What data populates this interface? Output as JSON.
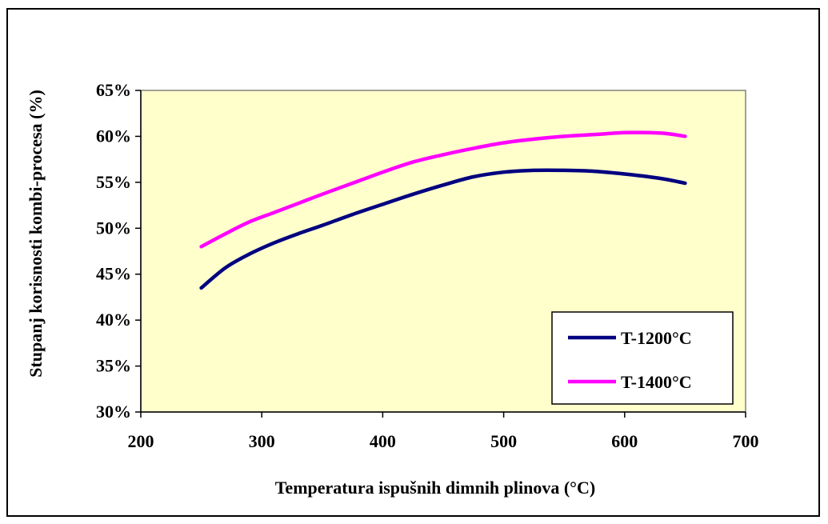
{
  "chart_data": {
    "type": "line",
    "title": "",
    "xlabel": "Temperatura ispušnih dimnih plinova (°C)",
    "ylabel": "Stupanj korisnosti kombi-procesa (%)",
    "xlim": [
      200,
      700
    ],
    "ylim": [
      0.3,
      0.65
    ],
    "x_ticks": [
      200,
      300,
      400,
      500,
      600,
      700
    ],
    "x_tick_labels": [
      "200",
      "300",
      "400",
      "500",
      "600",
      "700"
    ],
    "y_ticks": [
      0.3,
      0.35,
      0.4,
      0.45,
      0.5,
      0.55,
      0.6,
      0.65
    ],
    "y_tick_labels": [
      "30%",
      "35%",
      "40%",
      "45%",
      "50%",
      "55%",
      "60%",
      "65%"
    ],
    "grid": false,
    "plot_background": "#ffffcc",
    "legend_position": "bottom-right",
    "series": [
      {
        "name": "T-1200°C",
        "color": "#000080",
        "x": [
          250,
          270,
          290,
          310,
          330,
          350,
          375,
          400,
          425,
          450,
          475,
          500,
          525,
          550,
          575,
          600,
          620,
          635,
          650
        ],
        "y": [
          0.435,
          0.457,
          0.472,
          0.484,
          0.494,
          0.503,
          0.515,
          0.526,
          0.537,
          0.547,
          0.556,
          0.561,
          0.563,
          0.563,
          0.562,
          0.559,
          0.556,
          0.553,
          0.549
        ]
      },
      {
        "name": "T-1400°C",
        "color": "#ff00ff",
        "x": [
          250,
          270,
          290,
          310,
          330,
          350,
          375,
          400,
          425,
          450,
          475,
          500,
          525,
          550,
          575,
          600,
          620,
          635,
          650
        ],
        "y": [
          0.48,
          0.494,
          0.507,
          0.517,
          0.527,
          0.537,
          0.549,
          0.561,
          0.572,
          0.58,
          0.587,
          0.593,
          0.597,
          0.6,
          0.602,
          0.604,
          0.604,
          0.603,
          0.6
        ]
      }
    ]
  }
}
